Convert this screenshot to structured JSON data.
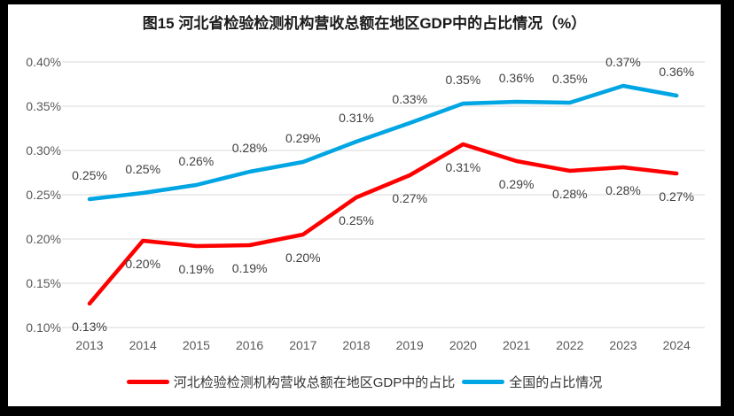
{
  "colors": {
    "frame": "#000000",
    "background": "#FFFFFF",
    "gridline": "#D9D9D9",
    "axis_text": "#595959",
    "data_label_text": "#404040",
    "title_text": "#1A1A1A",
    "series_hebei": "#FF0000",
    "series_national": "#00A5E3"
  },
  "chart_data": {
    "type": "line",
    "title": "图15 河北省检验检测机构营收总额在地区GDP中的占比情况（%）",
    "x": [
      "2013",
      "2014",
      "2015",
      "2016",
      "2017",
      "2018",
      "2019",
      "2020",
      "2021",
      "2022",
      "2023",
      "2024"
    ],
    "xlabel": "",
    "ylabel": "",
    "ylim": [
      0.1,
      0.4
    ],
    "yticks": [
      0.1,
      0.15,
      0.2,
      0.25,
      0.3,
      0.35,
      0.4
    ],
    "ytick_labels": [
      "0.10%",
      "0.15%",
      "0.20%",
      "0.25%",
      "0.30%",
      "0.35%",
      "0.40%"
    ],
    "grid": true,
    "legend_position": "bottom",
    "series": [
      {
        "name": "河北检验检测机构营收总额在地区GDP中的占比",
        "color": "#FF0000",
        "values": [
          0.13,
          0.2,
          0.19,
          0.19,
          0.2,
          0.25,
          0.27,
          0.31,
          0.29,
          0.28,
          0.28,
          0.27
        ],
        "labels": [
          "0.13%",
          "0.20%",
          "0.19%",
          "0.19%",
          "0.20%",
          "0.25%",
          "0.27%",
          "0.31%",
          "0.29%",
          "0.28%",
          "0.28%",
          "0.27%"
        ],
        "plot_values": [
          0.127,
          0.198,
          0.192,
          0.193,
          0.205,
          0.247,
          0.272,
          0.307,
          0.288,
          0.277,
          0.281,
          0.274
        ],
        "label_position": "below"
      },
      {
        "name": "全国的占比情况",
        "color": "#00A5E3",
        "values": [
          0.25,
          0.25,
          0.26,
          0.28,
          0.29,
          0.31,
          0.33,
          0.35,
          0.36,
          0.35,
          0.37,
          0.36
        ],
        "labels": [
          "0.25%",
          "0.25%",
          "0.26%",
          "0.28%",
          "0.29%",
          "0.31%",
          "0.33%",
          "0.35%",
          "0.36%",
          "0.35%",
          "0.37%",
          "0.36%"
        ],
        "plot_values": [
          0.245,
          0.252,
          0.261,
          0.276,
          0.287,
          0.31,
          0.331,
          0.353,
          0.355,
          0.354,
          0.373,
          0.362
        ],
        "label_position": "above"
      }
    ]
  }
}
